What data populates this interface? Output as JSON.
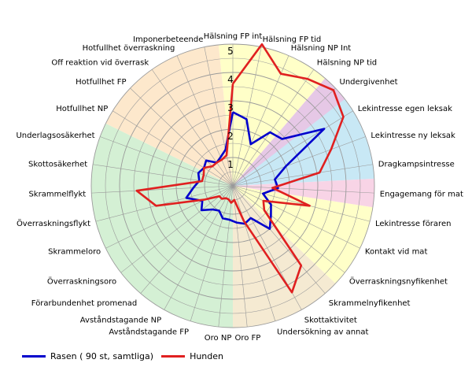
{
  "chart_data": {
    "type": "radar",
    "rmax": 5,
    "ticks": [
      1,
      2,
      3,
      4,
      5
    ],
    "categories": [
      "Hälsning FP int",
      "Hälsning FP tid",
      "Hälsning NP Int",
      "Hälsning NP tid",
      "Undergivenhet",
      "Lekintresse egen leksak",
      "Lekintresse ny leksak",
      "Dragkampsintresse",
      "Engagemang för mat",
      "Lekintresse föraren",
      "Kontakt vid mat",
      "Överraskningsnyfikenhet",
      "Skrammelnyfikenhet",
      "Skottaktivitet",
      "Undersökning av annat",
      "Oro FP",
      "Oro NP",
      "Avståndstagande FP",
      "Avståndstagande NP",
      "Förarbundenhet promenad",
      "Överraskningsoro",
      "Skrammeloro",
      "Överraskningsflykt",
      "Skrammelflykt",
      "Skottosäkerhet",
      "Underlagsosäkerhet",
      "Hotfullhet NP",
      "Hotfullhet FP",
      "Off reaktion vid överrask",
      "Hotfullhet överraskning",
      "Imponerbeteende"
    ],
    "sectors": [
      {
        "from": 0,
        "to": 3,
        "color": "#ffffc8"
      },
      {
        "from": 4,
        "to": 5,
        "color": "#e6c8e6"
      },
      {
        "from": 5,
        "to": 7,
        "color": "#c8e8f5"
      },
      {
        "from": 8,
        "to": 8,
        "color": "#f8d4e6"
      },
      {
        "from": 9,
        "to": 11,
        "color": "#ffffc8"
      },
      {
        "from": 12,
        "to": 15,
        "color": "#f5ead2"
      },
      {
        "from": 16,
        "to": 25,
        "color": "#d4f0d4"
      },
      {
        "from": 26,
        "to": 30,
        "color": "#fde8cc"
      }
    ],
    "series": [
      {
        "name": "Rasen ( 90 st, samtliga)",
        "color": "#0000cc",
        "values": [
          2.6,
          2.4,
          1.6,
          2.3,
          2.4,
          3.8,
          2.0,
          1.5,
          1.6,
          1.1,
          1.5,
          1.7,
          2.0,
          1.3,
          1.4,
          1.3,
          1.2,
          1.2,
          1.0,
          1.1,
          1.4,
          1.2,
          1.7,
          1.4,
          1.2,
          1.3,
          1.2,
          1.3,
          1.0,
          1.1,
          1.3
        ]
      },
      {
        "name": "Hunden",
        "color": "#e02020",
        "values": [
          3.6,
          5.1,
          4.3,
          4.6,
          4.9,
          4.6,
          3.7,
          3.1,
          1.4,
          2.8,
          1.2,
          1.4,
          3.7,
          4.3,
          1.3,
          0.5,
          0.6,
          0.5,
          0.5,
          0.6,
          0.6,
          1.1,
          2.8,
          3.4,
          1.1,
          1.1,
          1.2,
          1.0,
          1.0,
          1.0,
          1.1
        ]
      }
    ],
    "legend_position": "bottom-left"
  }
}
